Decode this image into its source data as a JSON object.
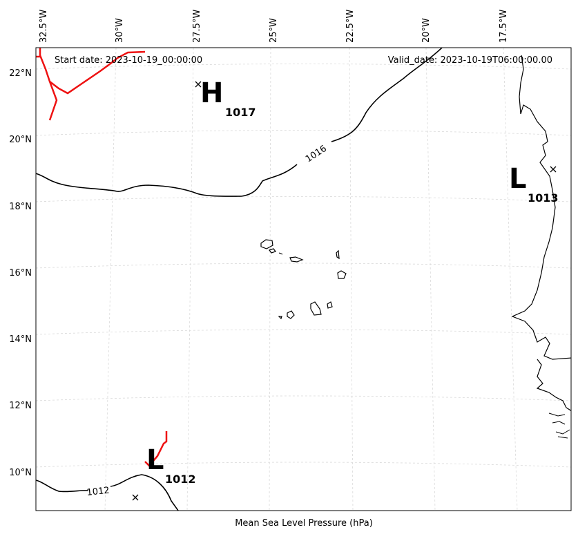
{
  "map": {
    "start_date": "Start date: 2023-10-19_00:00:00",
    "valid_date": "Valid_date: 2023-10-19T06:00:00.00",
    "xlabel": "Mean Sea Level Pressure (hPa)",
    "lon_labels": [
      "32.5°W",
      "30°W",
      "27.5°W",
      "25°W",
      "22.5°W",
      "20°W",
      "17.5°W"
    ],
    "lat_labels": [
      "22°N",
      "20°N",
      "18°N",
      "16°N",
      "14°N",
      "12°N",
      "10°N"
    ],
    "pressure_centers": [
      {
        "type": "H",
        "value": "1017"
      },
      {
        "type": "L",
        "value": "1013"
      },
      {
        "type": "L",
        "value": "1012"
      }
    ],
    "contour_labels": [
      "1016",
      "1012"
    ],
    "colors": {
      "isobar": "#000000",
      "front": "#ee1111",
      "grid": "#d8d8d8",
      "coast": "#000000"
    }
  }
}
